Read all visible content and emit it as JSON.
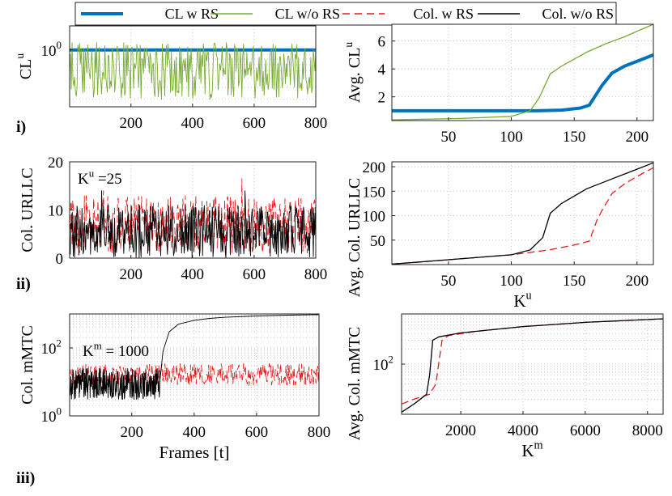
{
  "legend": {
    "entries": [
      {
        "label": "CL w RS",
        "color": "#0072BD",
        "style": "solid-thick"
      },
      {
        "label": "CL w/o RS",
        "color": "#77AC30",
        "style": "solid"
      },
      {
        "label": "Col. w RS",
        "color": "#E8191C",
        "style": "dashed"
      },
      {
        "label": "Col. w/o RS",
        "color": "#000000",
        "style": "solid"
      }
    ]
  },
  "row_labels": [
    "i)",
    "ii)",
    "iii)"
  ],
  "colors": {
    "blue": "#0072BD",
    "green": "#77AC30",
    "red": "#E8191C",
    "black": "#000000",
    "grid": "#bdbdbd"
  },
  "chart_data": [
    {
      "id": "p1",
      "type": "line",
      "ylabel": "CL",
      "ylabel_sup": "u",
      "xlabel": "",
      "yscale": "log",
      "xlim": [
        1,
        800
      ],
      "ylim": [
        0.25,
        1.8
      ],
      "xticks": [
        200,
        400,
        600,
        800
      ],
      "yticks": [
        1
      ],
      "ytick_labels": [
        {
          "base": "10",
          "exp": "0"
        }
      ],
      "series": [
        {
          "name": "CL w RS",
          "kind": "constant",
          "value": 1.0
        },
        {
          "name": "CL w/o RS",
          "kind": "noise",
          "low": 0.3,
          "high": 1.2,
          "n": 300
        }
      ]
    },
    {
      "id": "p2",
      "type": "line",
      "ylabel": "Avg. CL",
      "ylabel_sup": "u",
      "xlabel": "",
      "xlim": [
        5,
        213
      ],
      "ylim": [
        0.3,
        7.2
      ],
      "xticks": [
        50,
        100,
        150,
        200
      ],
      "yticks": [
        2,
        4,
        6
      ],
      "series": [
        {
          "name": "CL w RS",
          "x": [
            5,
            120,
            140,
            155,
            162,
            172,
            180,
            190,
            200,
            213
          ],
          "y": [
            1.0,
            1.0,
            1.05,
            1.2,
            1.4,
            2.8,
            3.7,
            4.2,
            4.55,
            5.0
          ]
        },
        {
          "name": "CL w/o RS",
          "x": [
            5,
            60,
            100,
            115,
            122,
            131,
            140,
            150,
            160,
            175,
            190,
            200,
            213
          ],
          "y": [
            0.35,
            0.45,
            0.6,
            1.0,
            1.9,
            3.65,
            4.2,
            4.7,
            5.2,
            5.8,
            6.3,
            6.7,
            7.2
          ]
        }
      ]
    },
    {
      "id": "p3",
      "type": "line",
      "ylabel": "Col. URLLC",
      "xlabel": "",
      "xlim": [
        1,
        800
      ],
      "ylim": [
        0,
        20
      ],
      "xticks": [
        200,
        400,
        600,
        800
      ],
      "yticks": [
        0,
        10,
        20
      ],
      "annotation": {
        "base": "K",
        "sup": "u",
        "text": " =25"
      },
      "series": [
        {
          "name": "Col. w RS",
          "kind": "noise",
          "low": 1,
          "high": 13,
          "n": 400,
          "spikes": [
            [
              560,
              16.5
            ],
            [
              110,
              14
            ]
          ]
        },
        {
          "name": "Col. w/o RS",
          "kind": "noise",
          "low": 0,
          "high": 11,
          "n": 400,
          "spikes": [
            [
              105,
              14
            ],
            [
              570,
              14
            ]
          ]
        }
      ]
    },
    {
      "id": "p4",
      "type": "line",
      "ylabel": "Avg. Col. URLLC",
      "xlabel": "K",
      "xlabel_sup": "u",
      "xlim": [
        5,
        213
      ],
      "ylim": [
        0,
        210
      ],
      "xticks": [
        50,
        100,
        150,
        200
      ],
      "yticks": [
        50,
        100,
        150,
        200
      ],
      "series": [
        {
          "name": "Col. w RS",
          "x": [
            5,
            50,
            100,
            130,
            150,
            162,
            168,
            172,
            180,
            190,
            200,
            213
          ],
          "y": [
            1,
            10,
            20,
            30,
            40,
            48,
            90,
            110,
            145,
            165,
            180,
            198
          ]
        },
        {
          "name": "Col. w/o RS",
          "x": [
            5,
            50,
            100,
            115,
            125,
            131,
            140,
            150,
            160,
            175,
            190,
            200,
            213
          ],
          "y": [
            1,
            10,
            20,
            30,
            55,
            105,
            125,
            140,
            155,
            170,
            185,
            195,
            208
          ]
        }
      ]
    },
    {
      "id": "p5",
      "type": "line",
      "ylabel": "Col. mMTC",
      "xlabel": "Frames [t]",
      "yscale": "log",
      "xlim": [
        1,
        800
      ],
      "ylim": [
        1,
        1000
      ],
      "xticks": [
        200,
        400,
        600,
        800
      ],
      "yticks": [
        1,
        100
      ],
      "ytick_labels": [
        {
          "base": "10",
          "exp": "0"
        },
        {
          "base": "10",
          "exp": "2"
        }
      ],
      "annotation": {
        "base": "K",
        "sup": "m",
        "text": " = 1000"
      },
      "series": [
        {
          "name": "Col. w RS",
          "kind": "noise",
          "low": 8,
          "high": 35,
          "n": 400
        },
        {
          "name": "Col. w/o RS",
          "kind": "noise-then-rise",
          "low": 3,
          "high": 25,
          "n": 300,
          "switch": 290,
          "rise_x": [
            290,
            300,
            320,
            350,
            400,
            450,
            500,
            600,
            700,
            800
          ],
          "rise_y": [
            10,
            80,
            300,
            500,
            650,
            740,
            800,
            870,
            920,
            950
          ]
        }
      ]
    },
    {
      "id": "p6",
      "type": "line",
      "ylabel": "Avg. Col. mMTC",
      "xlabel": "K",
      "xlabel_sup": "m",
      "yscale": "log",
      "xlim": [
        100,
        8500
      ],
      "ylim": [
        10,
        1000
      ],
      "xticks": [
        2000,
        4000,
        6000,
        8000
      ],
      "yticks": [
        100
      ],
      "ytick_labels": [
        {
          "base": "10",
          "exp": "2"
        }
      ],
      "series": [
        {
          "name": "Col. w RS",
          "x": [
            100,
            500,
            1000,
            1200,
            1400,
            1600,
            2500,
            4000,
            6000,
            8500
          ],
          "y": [
            16,
            20,
            25,
            40,
            300,
            370,
            450,
            560,
            680,
            800
          ]
        },
        {
          "name": "Col. w/o RS",
          "x": [
            100,
            500,
            900,
            1000,
            1100,
            1300,
            2000,
            4000,
            6000,
            8500
          ],
          "y": [
            11,
            16,
            25,
            60,
            300,
            350,
            420,
            560,
            680,
            800
          ]
        }
      ]
    }
  ]
}
